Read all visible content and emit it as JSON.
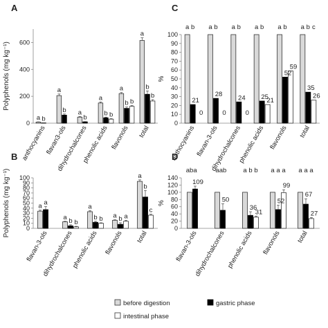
{
  "legend": {
    "items": [
      {
        "key": "before",
        "label": "before digestion",
        "color": "#d9d9d9"
      },
      {
        "key": "gastric",
        "label": "gastric phase",
        "color": "#000000"
      },
      {
        "key": "intestinal",
        "label": "intestinal phase",
        "color": "#ffffff"
      }
    ]
  },
  "chart_data": [
    {
      "panel": "A",
      "type": "bar",
      "ylabel": "Polyphenols (mg kg⁻¹)",
      "ylim": [
        0,
        700
      ],
      "yticks": [
        0,
        200,
        400,
        600
      ],
      "categories": [
        "anthocyanins",
        "flavan3-ols",
        "dihydrochalcones",
        "phenolic acids",
        "flavonols",
        "total"
      ],
      "series": [
        {
          "name": "before digestion",
          "values": [
            8,
            205,
            45,
            150,
            220,
            615
          ],
          "errors": [
            2,
            12,
            5,
            8,
            8,
            20
          ]
        },
        {
          "name": "gastric phase",
          "values": [
            2,
            60,
            10,
            40,
            110,
            215
          ],
          "errors": [
            1,
            8,
            2,
            5,
            10,
            25
          ]
        },
        {
          "name": "intestinal phase",
          "values": [
            0,
            0,
            0,
            30,
            125,
            165
          ],
          "errors": [
            0,
            0,
            0,
            4,
            6,
            10
          ]
        }
      ],
      "letters": [
        [
          "a",
          "b",
          ""
        ],
        [
          "a",
          "b",
          ""
        ],
        [
          "a",
          "b",
          ""
        ],
        [
          "a",
          "b",
          "b"
        ],
        [
          "a",
          "b",
          "b"
        ],
        [
          "a",
          "b",
          "b"
        ]
      ]
    },
    {
      "panel": "C",
      "type": "bar",
      "ylabel": "%",
      "ylim": [
        0,
        100
      ],
      "yticks": [
        0,
        10,
        20,
        30,
        40,
        50,
        60,
        70,
        80,
        90,
        100
      ],
      "categories": [
        "anthocyanins",
        "flavan-3-ols",
        "dihydrochalcones",
        "phenolic acids",
        "flavonols",
        "total"
      ],
      "series": [
        {
          "name": "before digestion",
          "values": [
            100,
            100,
            100,
            100,
            100,
            100
          ]
        },
        {
          "name": "gastric phase",
          "values": [
            21,
            28,
            24,
            25,
            52,
            35
          ]
        },
        {
          "name": "intestinal phase",
          "values": [
            0,
            0,
            0,
            21,
            59,
            26
          ]
        }
      ],
      "data_labels": [
        [
          "21",
          "0"
        ],
        [
          "28",
          "0"
        ],
        [
          "24",
          "0"
        ],
        [
          "25",
          "21"
        ],
        [
          "52",
          "59"
        ],
        [
          "35",
          "26"
        ]
      ],
      "letters": [
        [
          "a",
          "b",
          ""
        ],
        [
          "a",
          "b",
          ""
        ],
        [
          "a",
          "b",
          ""
        ],
        [
          "a",
          "b",
          ""
        ],
        [
          "a",
          "b",
          ""
        ],
        [
          "a",
          "b",
          "c"
        ]
      ]
    },
    {
      "panel": "B",
      "type": "bar",
      "ylabel": "Polyphenols (mg kg⁻¹)",
      "ylim": [
        0,
        100
      ],
      "yticks": [
        0,
        10,
        20,
        30,
        40,
        50,
        60,
        70,
        80,
        90,
        100
      ],
      "categories": [
        "flavan-3-ols",
        "dihydrochalcones",
        "phenolic acids",
        "flavonols",
        "total"
      ],
      "series": [
        {
          "name": "before digestion",
          "values": [
            34,
            13,
            33,
            16,
            93
          ],
          "errors": [
            2,
            1,
            2,
            1,
            3
          ]
        },
        {
          "name": "gastric phase",
          "values": [
            37,
            5,
            12,
            8,
            62
          ],
          "errors": [
            6,
            2,
            2,
            3,
            13
          ]
        },
        {
          "name": "intestinal phase",
          "values": [
            0,
            3,
            10,
            14,
            26
          ],
          "errors": [
            0,
            1,
            1,
            2,
            2
          ]
        }
      ],
      "letters": [
        [
          "a",
          "a",
          ""
        ],
        [
          "a",
          "b",
          "b"
        ],
        [
          "a",
          "b",
          "b"
        ],
        [
          "a",
          "b",
          "a"
        ],
        [
          "a",
          "b",
          "c"
        ]
      ]
    },
    {
      "panel": "D",
      "type": "bar",
      "ylabel": "%",
      "ylim": [
        0,
        140
      ],
      "yticks": [
        0,
        20,
        40,
        60,
        80,
        100,
        120,
        140
      ],
      "categories": [
        "flavan-3-ols",
        "dihydrochalcones",
        "phenolic acids",
        "flavonols",
        "total"
      ],
      "series": [
        {
          "name": "before digestion",
          "values": [
            100,
            100,
            100,
            100,
            100
          ]
        },
        {
          "name": "gastric phase",
          "values": [
            109,
            50,
            36,
            52,
            67
          ],
          "errors": [
            8,
            18,
            10,
            12,
            15
          ]
        },
        {
          "name": "intestinal phase",
          "values": [
            0,
            0,
            31,
            99,
            27
          ],
          "errors": [
            0,
            0,
            3,
            8,
            3
          ]
        }
      ],
      "data_labels": [
        [
          "109",
          ""
        ],
        [
          "50",
          ""
        ],
        [
          "36",
          "31"
        ],
        [
          "52",
          "99"
        ],
        [
          "67",
          "27"
        ]
      ],
      "letters": [
        [
          "ab",
          "a",
          ""
        ],
        [
          "a",
          "ab",
          ""
        ],
        [
          "a",
          "b",
          "b"
        ],
        [
          "a",
          "a",
          "a"
        ],
        [
          "a",
          "a",
          "a"
        ]
      ]
    }
  ]
}
